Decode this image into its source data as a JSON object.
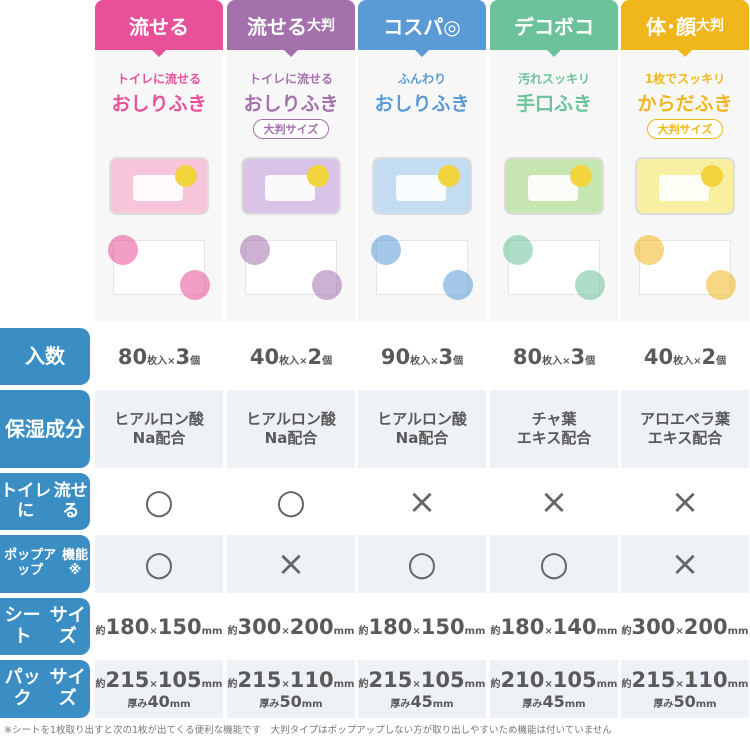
{
  "products": [
    {
      "tab": "流せる",
      "tab_small": "",
      "sub1": "トイレに流せる",
      "sub2": "おしりふき",
      "pill": "",
      "color": "#e8509a",
      "pack": "#f6c5da",
      "count": "80",
      "qty": "3",
      "moist": [
        "ヒアルロン酸",
        "Na配合"
      ],
      "flush": "○",
      "popup": "○",
      "sheet": [
        "180",
        "150"
      ],
      "pack_size": [
        "215",
        "105"
      ],
      "thick": "40"
    },
    {
      "tab": "流せる",
      "tab_small": "大判",
      "sub1": "トイレに流せる",
      "sub2": "おしりふき",
      "pill": "大判サイズ",
      "color": "#a471ad",
      "pack": "#d9c3e6",
      "count": "40",
      "qty": "2",
      "moist": [
        "ヒアルロン酸",
        "Na配合"
      ],
      "flush": "○",
      "popup": "×",
      "sheet": [
        "300",
        "200"
      ],
      "pack_size": [
        "215",
        "110"
      ],
      "thick": "50"
    },
    {
      "tab": "コスパ◎",
      "tab_small": "",
      "sub1": "ふんわり",
      "sub2": "おしりふき",
      "pill": "",
      "color": "#5a9bd5",
      "pack": "#c4dcf2",
      "count": "90",
      "qty": "3",
      "moist": [
        "ヒアルロン酸",
        "Na配合"
      ],
      "flush": "×",
      "popup": "○",
      "sheet": [
        "180",
        "150"
      ],
      "pack_size": [
        "215",
        "105"
      ],
      "thick": "45"
    },
    {
      "tab": "デコボコ",
      "tab_small": "",
      "sub1": "汚れスッキリ",
      "sub2": "手口ふき",
      "pill": "",
      "color": "#6cc29a",
      "pack": "#c6e5b0",
      "count": "80",
      "qty": "3",
      "moist": [
        "チャ葉",
        "エキス配合"
      ],
      "flush": "×",
      "popup": "○",
      "sheet": [
        "180",
        "140"
      ],
      "pack_size": [
        "210",
        "105"
      ],
      "thick": "45"
    },
    {
      "tab": "体･顔",
      "tab_small": "大判",
      "sub1": "1枚でスッキリ",
      "sub2": "からだふき",
      "pill": "大判サイズ",
      "color": "#f0b71d",
      "pack": "#f8f0a0",
      "count": "40",
      "qty": "2",
      "moist": [
        "アロエベラ葉",
        "エキス配合"
      ],
      "flush": "×",
      "popup": "×",
      "sheet": [
        "300",
        "200"
      ],
      "pack_size": [
        "215",
        "110"
      ],
      "thick": "50"
    }
  ],
  "rows": {
    "count": "入数",
    "moist": [
      "保湿",
      "成分"
    ],
    "flush": [
      "トイレに",
      "流せる"
    ],
    "popup": [
      "ポップアップ",
      "機能※"
    ],
    "sheet": [
      "シート",
      "サイズ"
    ],
    "pack": [
      "パック",
      "サイズ"
    ]
  },
  "units": {
    "sheets": "枚入×",
    "pieces": "個",
    "approx": "約",
    "times": "×",
    "mm": "mm",
    "thick": "厚み"
  },
  "footnote": "※シートを1枚取り出すと次の1枚が出てくる便利な機能です　大判タイプはポップアップしない方が取り出しやすいため機能は付いていません",
  "label_color": "#3b8ec4"
}
